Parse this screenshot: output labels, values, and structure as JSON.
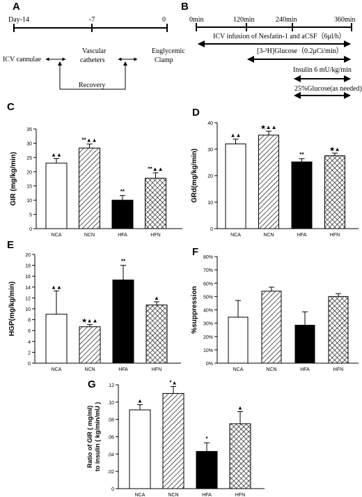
{
  "panelA": {
    "letter": "A",
    "ticks": [
      "Day-14",
      "-7",
      "0"
    ],
    "labels": {
      "icv": "ICV cannulae",
      "vascular1": "Vascular",
      "vascular2": "catheters",
      "euglycemic1": "Euglycemic",
      "euglycemic2": "Clamp",
      "recovery": "Recovery"
    }
  },
  "panelB": {
    "letter": "B",
    "ticks": [
      "0min",
      "120min",
      "240min",
      "360min"
    ],
    "rows": [
      "ICV infusion of Nesfatin-1 and aCSF（6μl/h）",
      "[3-³H]Glucose（0.2μCi/min）",
      "Insulin 6 mU/kg/min",
      "25%Glucose(as needed)"
    ]
  },
  "chart_data": [
    {
      "type": "bar",
      "letter": "C",
      "categories": [
        "NCA",
        "NCN",
        "HFA",
        "HFN"
      ],
      "values": [
        23,
        28.3,
        10,
        17.7
      ],
      "errors": [
        1.6,
        1.4,
        1.6,
        1.9
      ],
      "marks": [
        "▲▲",
        "**▲▲",
        "**",
        "**▲▲"
      ],
      "ylabel": "GIR (mg/kg/min)",
      "ylim": [
        0,
        35
      ],
      "yticks": [
        "0",
        "5",
        "10",
        "15",
        "20",
        "25",
        "30",
        "35"
      ],
      "fills": [
        "white",
        "hatch",
        "black",
        "crosshatch"
      ]
    },
    {
      "type": "bar",
      "letter": "D",
      "categories": [
        "NCA",
        "NCN",
        "HFA",
        "HFN"
      ],
      "values": [
        32,
        35.3,
        25.2,
        27.5
      ],
      "errors": [
        1.8,
        1.5,
        1.2,
        1.0
      ],
      "marks": [
        "▲▲",
        "★▲▲",
        "**",
        "★▲"
      ],
      "ylabel": "GRd(mg/kg/min)",
      "ylim": [
        0,
        40
      ],
      "yticks": [
        "0",
        "10",
        "20",
        "30",
        "40"
      ],
      "fills": [
        "white",
        "hatch",
        "black",
        "crosshatch"
      ]
    },
    {
      "type": "bar",
      "letter": "E",
      "categories": [
        "NCA",
        "NCN",
        "HFA",
        "HFN"
      ],
      "values": [
        9,
        6.7,
        15.3,
        10.7
      ],
      "errors": [
        4.3,
        0.4,
        2.7,
        0.6
      ],
      "marks": [
        "▲▲",
        "★▲▲",
        "**",
        "▲"
      ],
      "ylabel": "HGP(mg/kg/min)",
      "ylim": [
        0,
        20
      ],
      "yticks": [
        "0",
        "2",
        "4",
        "6",
        "8",
        "10",
        "12",
        "14",
        "16",
        "18",
        "20"
      ],
      "fills": [
        "white",
        "hatch",
        "black",
        "crosshatch"
      ]
    },
    {
      "type": "bar",
      "letter": "F",
      "categories": [
        "NCA",
        "NCN",
        "HFA",
        "HFN"
      ],
      "values": [
        34.5,
        54,
        28.5,
        50
      ],
      "errors": [
        12.5,
        3,
        10,
        2.2
      ],
      "marks": [
        "",
        "",
        "",
        ""
      ],
      "ylabel": "%suppression",
      "ylim": [
        0,
        80
      ],
      "yticks": [
        "0%",
        "10%",
        "20%",
        "30%",
        "40%",
        "50%",
        "60%",
        "70%",
        "80%"
      ],
      "fills": [
        "white",
        "hatch",
        "black",
        "crosshatch"
      ]
    },
    {
      "type": "bar",
      "letter": "G",
      "categories": [
        "NCA",
        "NCN",
        "HFA",
        "HFN"
      ],
      "values": [
        0.091,
        0.11,
        0.043,
        0.075
      ],
      "errors": [
        0.006,
        0.008,
        0.01,
        0.014
      ],
      "marks": [
        "▲",
        "*▲",
        "*",
        "▲"
      ],
      "ylabel": "Ratio of GIR ( mg/ml)",
      "ylabel2": "to insulin ( kg/min/mU )",
      "ylim": [
        0,
        0.12
      ],
      "yticks": [
        "0",
        ".02",
        ".04",
        ".06",
        ".08",
        ".10",
        ".12"
      ],
      "fills": [
        "white",
        "hatch",
        "black",
        "crosshatch"
      ]
    }
  ]
}
